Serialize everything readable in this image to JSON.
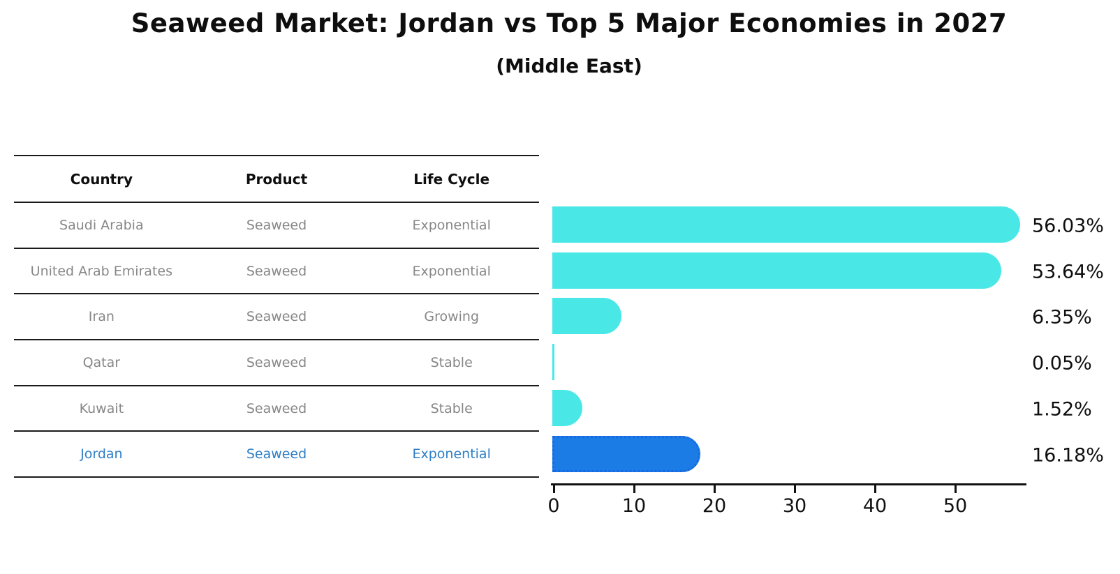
{
  "title": "Seaweed Market: Jordan vs Top 5 Major Economies in 2027",
  "subtitle": "(Middle East)",
  "table": {
    "headers": {
      "country": "Country",
      "product": "Product",
      "life_cycle": "Life Cycle"
    },
    "rows": [
      {
        "country": "Saudi Arabia",
        "product": "Seaweed",
        "life_cycle": "Exponential"
      },
      {
        "country": "United Arab Emirates",
        "product": "Seaweed",
        "life_cycle": "Exponential"
      },
      {
        "country": "Iran",
        "product": "Seaweed",
        "life_cycle": "Growing"
      },
      {
        "country": "Qatar",
        "product": "Seaweed",
        "life_cycle": "Stable"
      },
      {
        "country": "Kuwait",
        "product": "Seaweed",
        "life_cycle": "Stable"
      },
      {
        "country": "Jordan",
        "product": "Seaweed",
        "life_cycle": "Exponential"
      }
    ],
    "highlight_row": "Jordan"
  },
  "chart_data": {
    "type": "bar",
    "orientation": "horizontal",
    "title": "Seaweed Market: Jordan vs Top 5 Major Economies in 2027 (Middle East)",
    "categories": [
      "Saudi Arabia",
      "United Arab Emirates",
      "Iran",
      "Qatar",
      "Kuwait",
      "Jordan"
    ],
    "values": [
      56.03,
      53.64,
      6.35,
      0.05,
      1.52,
      16.18
    ],
    "value_labels": [
      "56.03%",
      "53.64%",
      "6.35%",
      "0.05%",
      "1.52%",
      "16.18%"
    ],
    "xlabel": "",
    "ylabel": "",
    "xticks": [
      0,
      10,
      20,
      30,
      40,
      50
    ],
    "xlim": [
      0,
      59
    ],
    "grid": false,
    "legend": false,
    "highlight_index": 5,
    "colors": {
      "bar": "#4ae7e7",
      "highlight_bar": "#1b7ce5",
      "highlight_border": "#1668e3",
      "highlight_text": "#2e7ec6",
      "table_text": "#878787",
      "axis": "#111111",
      "value_text": "#0e0e0e"
    }
  }
}
